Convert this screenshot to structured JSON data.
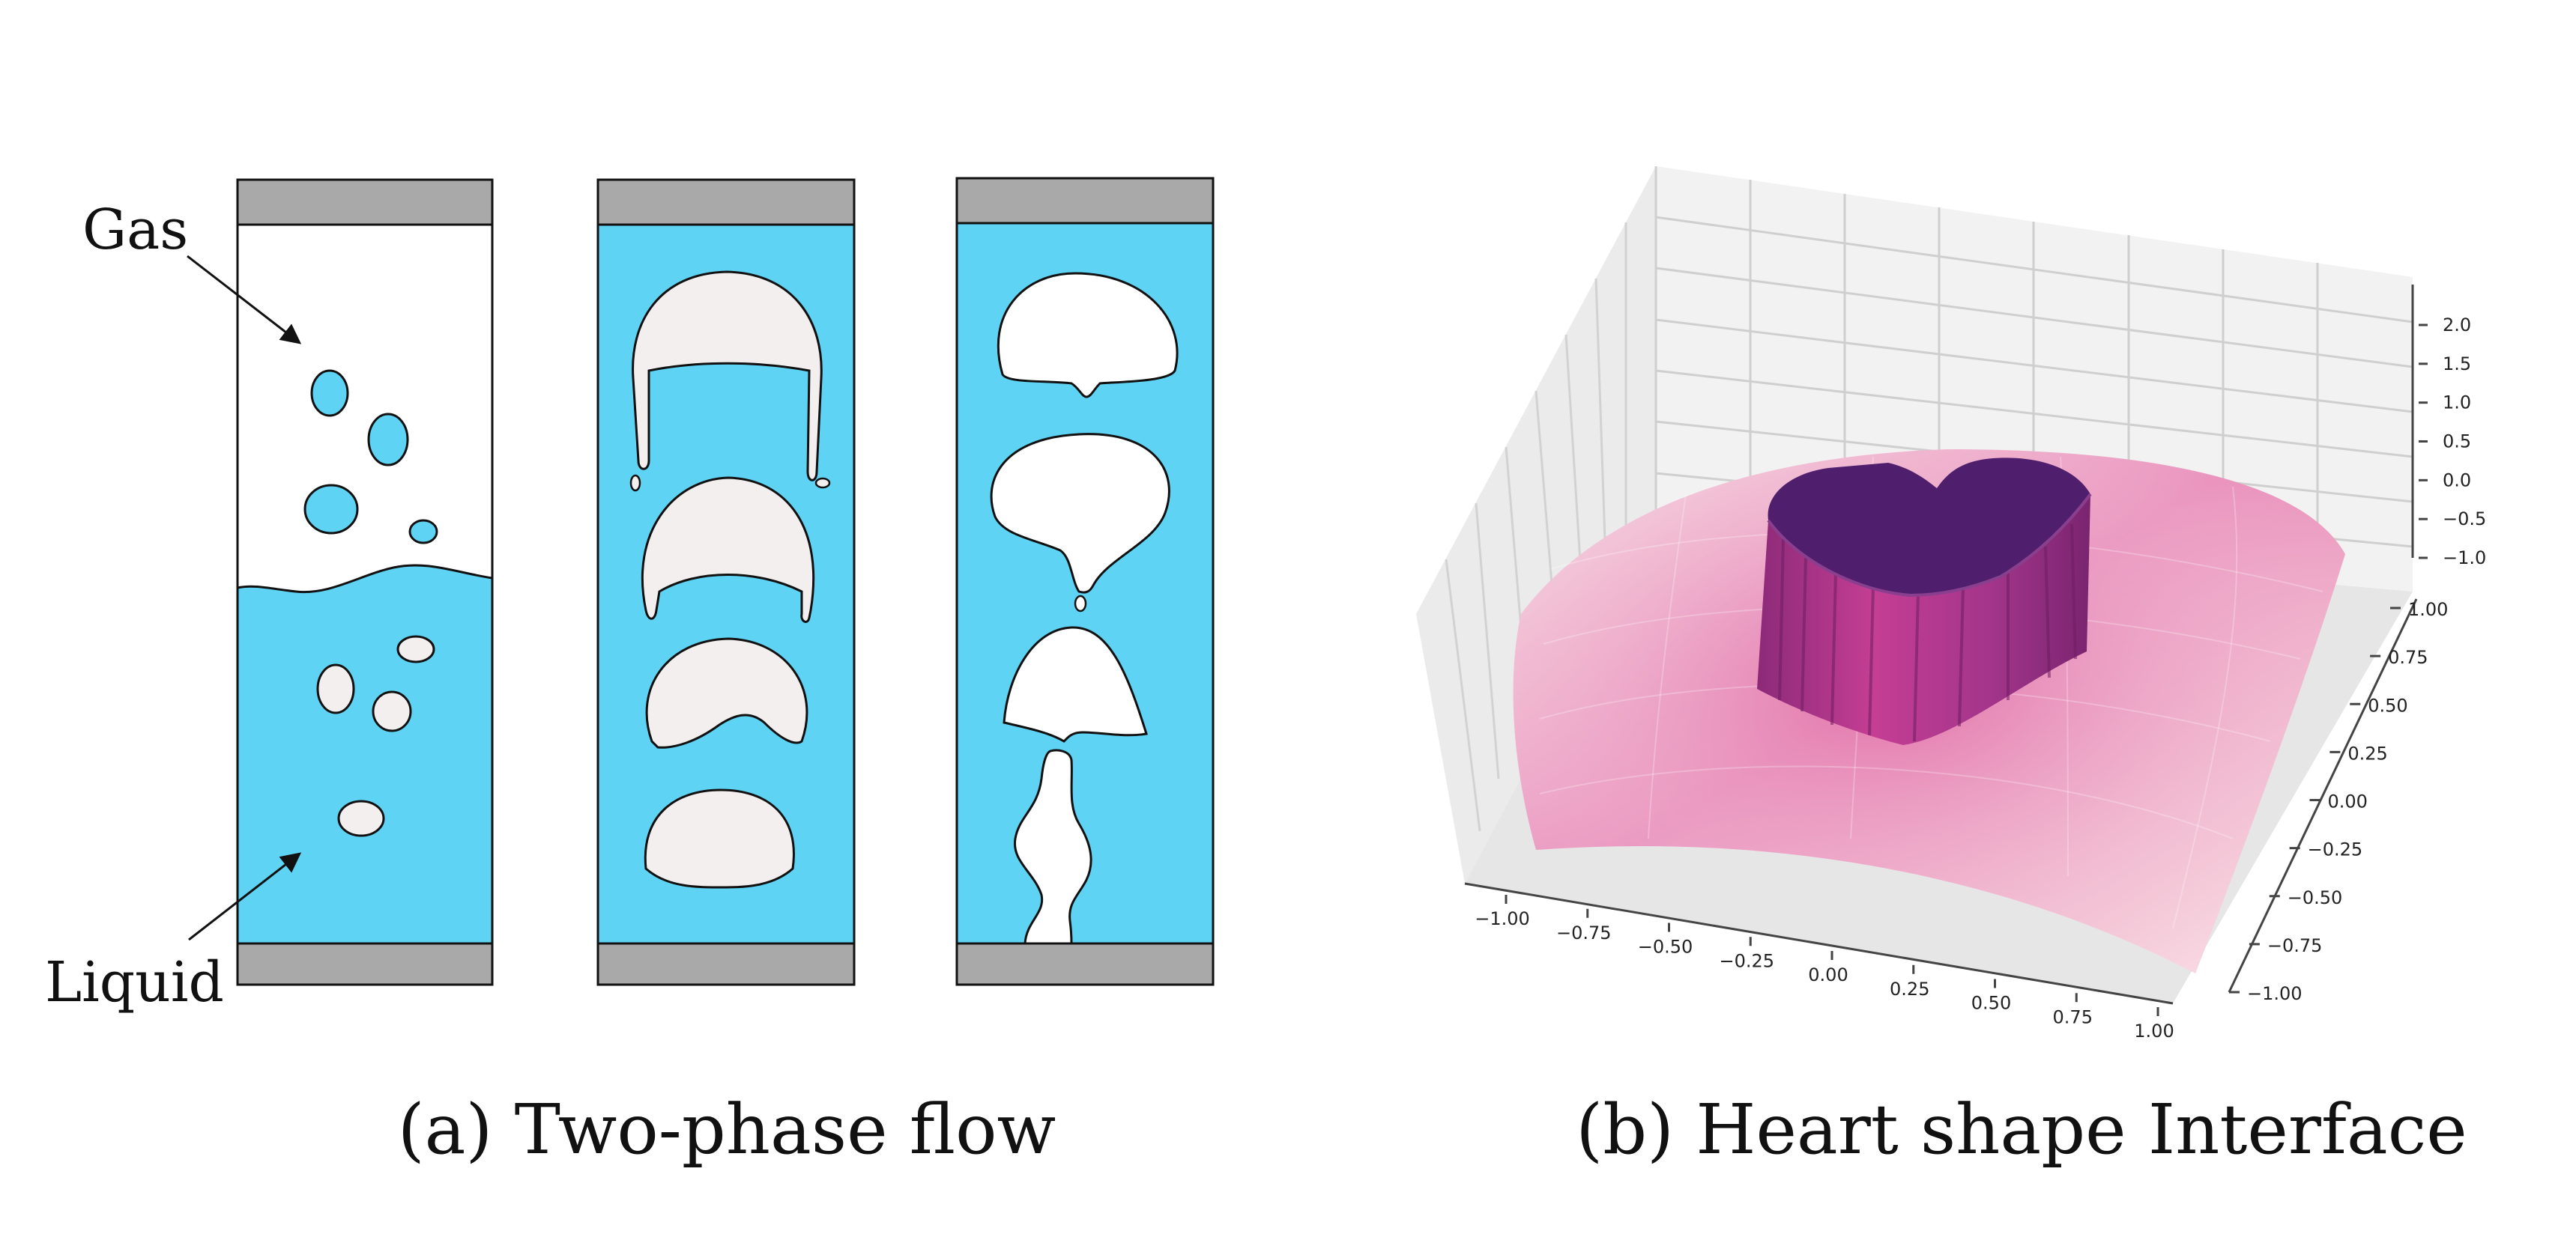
{
  "panel_a": {
    "caption": "(a) Two-phase flow",
    "label_gas": "Gas",
    "label_liquid": "Liquid"
  },
  "panel_b": {
    "caption": "(b) Heart shape Interface",
    "x_ticks": [
      "−1.00",
      "−0.75",
      "−0.50",
      "−0.25",
      "0.00",
      "0.25",
      "0.50",
      "0.75",
      "1.00"
    ],
    "y_ticks": [
      "1.00",
      "0.75",
      "0.50",
      "0.25",
      "0.00",
      "−0.25",
      "−0.50",
      "−0.75",
      "−1.00"
    ],
    "z_ticks": [
      "2.0",
      "1.5",
      "1.0",
      "0.5",
      "0.0",
      "−0.5",
      "−1.0"
    ]
  },
  "colors": {
    "liquid": "#5fd3f3",
    "gas_bubble": "#f3efef",
    "cap": "#a9a9a9",
    "surface_light": "#f6d3dc",
    "surface_mid": "#e27fb0",
    "heart_top": "#4f1f6d",
    "heart_wall": "#b83a8e"
  }
}
